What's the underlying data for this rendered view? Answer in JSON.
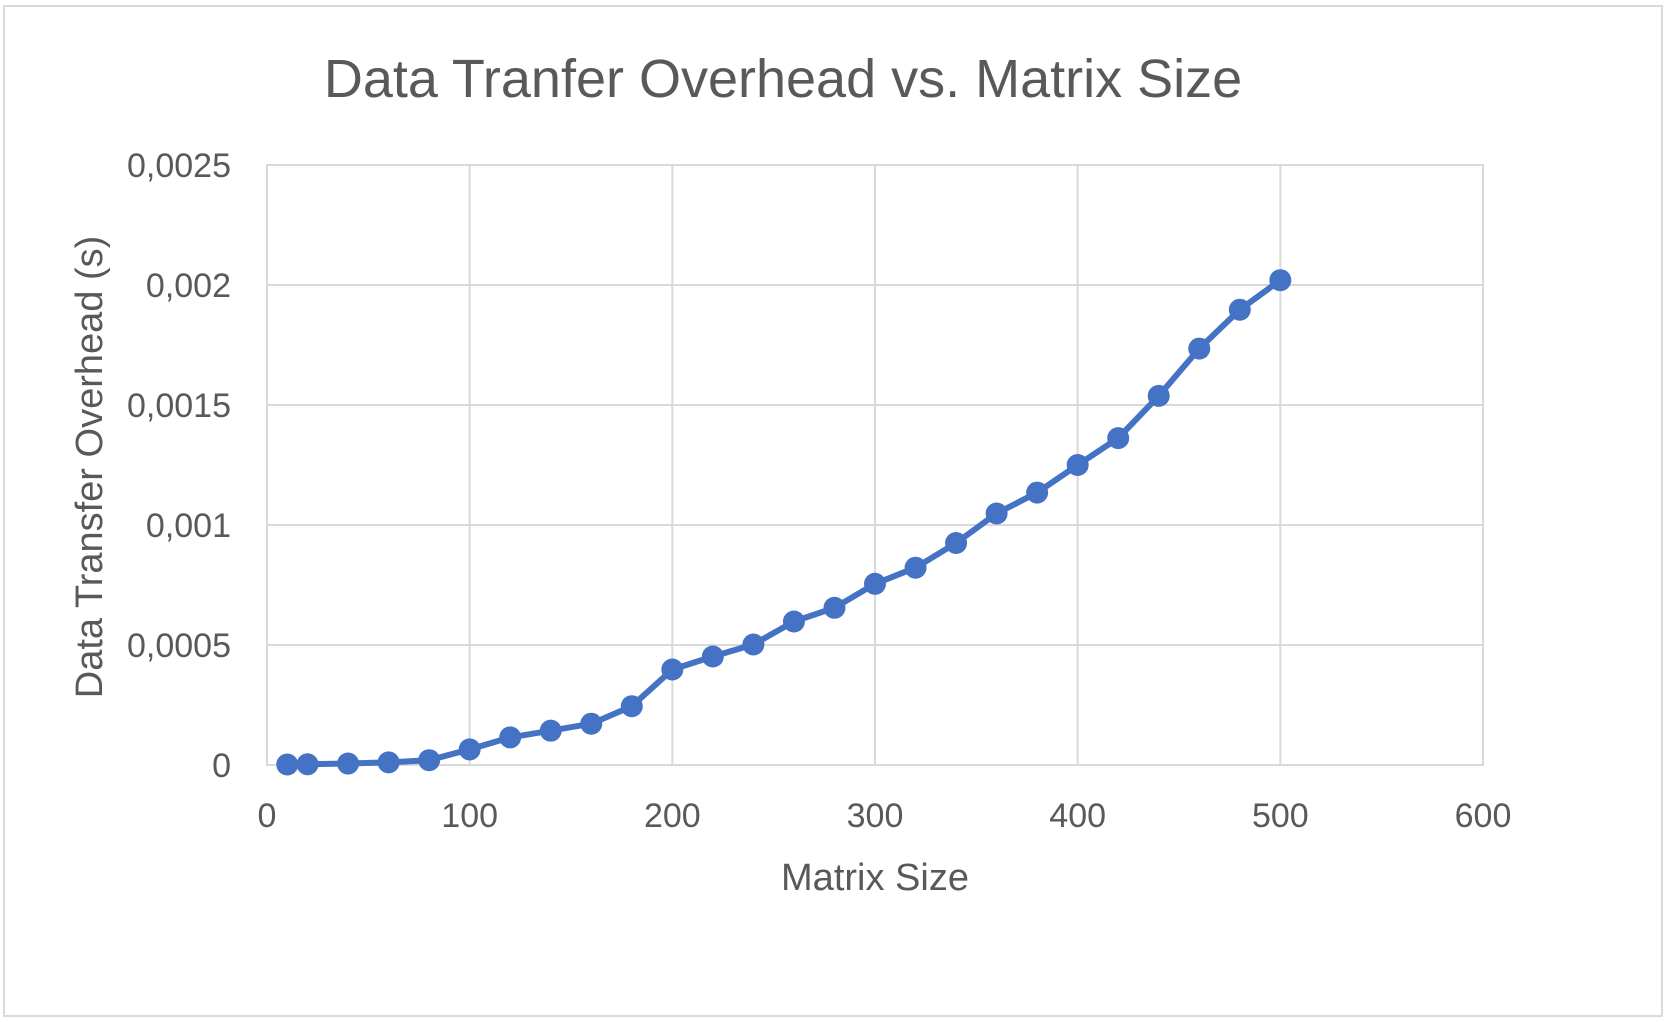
{
  "chart_data": {
    "type": "line",
    "title": "Data Tranfer Overhead vs. Matrix Size",
    "xlabel": "Matrix Size",
    "ylabel": "Data Transfer Overhead (s)",
    "xlim": [
      0,
      600
    ],
    "ylim": [
      0,
      0.0025
    ],
    "xticks": [
      0,
      100,
      200,
      300,
      400,
      500,
      600
    ],
    "xtick_labels": [
      "0",
      "100",
      "200",
      "300",
      "400",
      "500",
      "600"
    ],
    "yticks": [
      0,
      0.0005,
      0.001,
      0.0015,
      0.002,
      0.0025
    ],
    "ytick_labels": [
      "0",
      "0,0005",
      "0,001",
      "0,0015",
      "0,002",
      "0,0025"
    ],
    "grid": true,
    "legend": "none",
    "series": [
      {
        "color": "#4472c4",
        "x": [
          10,
          20,
          40,
          60,
          80,
          100,
          120,
          140,
          160,
          180,
          200,
          220,
          240,
          260,
          280,
          300,
          320,
          340,
          360,
          380,
          400,
          420,
          440,
          460,
          480,
          500
        ],
        "y": [
          2e-06,
          3e-06,
          6e-06,
          1.1e-05,
          2e-05,
          6.5e-05,
          0.000115,
          0.000143,
          0.000172,
          0.000245,
          0.000398,
          0.000452,
          0.000502,
          0.000598,
          0.000655,
          0.000755,
          0.000822,
          0.000925,
          0.001048,
          0.001135,
          0.00125,
          0.001362,
          0.001538,
          0.001735,
          0.001897,
          0.00202
        ]
      }
    ]
  }
}
